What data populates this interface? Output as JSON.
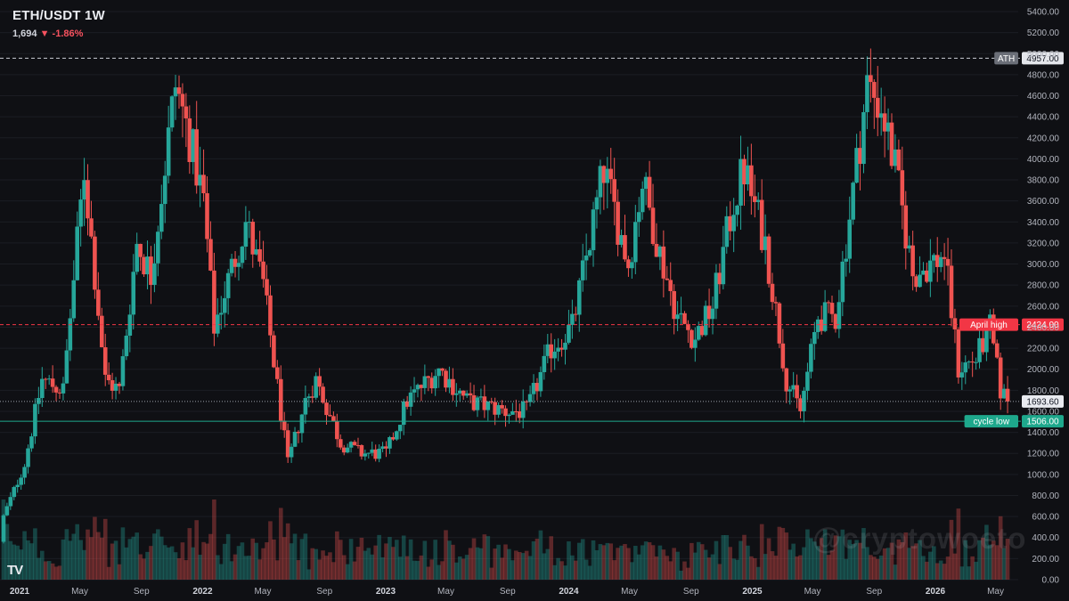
{
  "header": {
    "symbol": "ETH/USDT 1W",
    "last": "1,694",
    "arrow": "▼",
    "change": "-1.86%"
  },
  "logo": "TV",
  "watermark": "@cryptowoeto",
  "colors": {
    "up": "#26a69a",
    "down": "#ef5350",
    "background": "#0f1014",
    "ath_line": "#c9ccd3",
    "april_line": "#f23645",
    "cycle_line": "#1ea88c",
    "grid": "#1b1d23"
  },
  "chart_data": {
    "type": "candlestick",
    "title": "ETH/USDT 1W",
    "xlabel": "",
    "ylabel": "",
    "ylim": [
      0,
      5400
    ],
    "y_ticks": [
      "0.00",
      "200.00",
      "400.00",
      "600.00",
      "800.00",
      "1000.00",
      "1200.00",
      "1400.00",
      "1600.00",
      "1800.00",
      "2000.00",
      "2200.00",
      "2400.00",
      "2600.00",
      "2800.00",
      "3000.00",
      "3200.00",
      "3400.00",
      "3600.00",
      "3800.00",
      "4000.00",
      "4200.00",
      "4400.00",
      "4600.00",
      "4800.00",
      "5000.00",
      "5200.00",
      "5400.00"
    ],
    "x_ticks": [
      "2021",
      "May",
      "Sep",
      "2022",
      "May",
      "Sep",
      "2023",
      "May",
      "Sep",
      "2024",
      "May",
      "Sep",
      "2025",
      "May",
      "Sep",
      "2026",
      "May"
    ],
    "x_range": [
      "2020-11-23",
      "2026-06-01"
    ],
    "close_path": [
      [
        "2020-11-30",
        600
      ],
      [
        "2021-01-11",
        1100
      ],
      [
        "2021-02-15",
        1900
      ],
      [
        "2021-03-29",
        1800
      ],
      [
        "2021-05-10",
        3900
      ],
      [
        "2021-06-21",
        1900
      ],
      [
        "2021-07-19",
        1800
      ],
      [
        "2021-08-23",
        3200
      ],
      [
        "2021-09-20",
        2900
      ],
      [
        "2021-10-25",
        4200
      ],
      [
        "2021-11-08",
        4700
      ],
      [
        "2021-12-06",
        4200
      ],
      [
        "2022-01-03",
        3600
      ],
      [
        "2022-01-24",
        2400
      ],
      [
        "2022-03-28",
        3400
      ],
      [
        "2022-05-02",
        2800
      ],
      [
        "2022-06-20",
        1100
      ],
      [
        "2022-07-25",
        1700
      ],
      [
        "2022-08-15",
        1900
      ],
      [
        "2022-10-03",
        1300
      ],
      [
        "2022-11-14",
        1200
      ],
      [
        "2023-01-02",
        1200
      ],
      [
        "2023-02-13",
        1700
      ],
      [
        "2023-04-17",
        2000
      ],
      [
        "2023-06-12",
        1700
      ],
      [
        "2023-08-28",
        1600
      ],
      [
        "2023-10-09",
        1600
      ],
      [
        "2023-11-27",
        2200
      ],
      [
        "2024-01-08",
        2400
      ],
      [
        "2024-03-11",
        3900
      ],
      [
        "2024-04-29",
        3000
      ],
      [
        "2024-05-27",
        3800
      ],
      [
        "2024-07-01",
        3100
      ],
      [
        "2024-08-05",
        2500
      ],
      [
        "2024-09-09",
        2300
      ],
      [
        "2024-10-14",
        2600
      ],
      [
        "2024-11-25",
        3600
      ],
      [
        "2024-12-16",
        3900
      ],
      [
        "2025-01-27",
        3200
      ],
      [
        "2025-03-10",
        1900
      ],
      [
        "2025-04-07",
        1600
      ],
      [
        "2025-05-12",
        2500
      ],
      [
        "2025-06-16",
        2500
      ],
      [
        "2025-07-21",
        3700
      ],
      [
        "2025-08-18",
        4700
      ],
      [
        "2025-09-15",
        4500
      ],
      [
        "2025-10-13",
        3900
      ],
      [
        "2025-11-17",
        2900
      ],
      [
        "2025-12-22",
        3000
      ],
      [
        "2026-01-19",
        3100
      ],
      [
        "2026-02-16",
        2000
      ],
      [
        "2026-03-23",
        2100
      ],
      [
        "2026-04-20",
        2400
      ],
      [
        "2026-05-11",
        1800
      ],
      [
        "2026-05-25",
        1693.6
      ]
    ],
    "levels": [
      {
        "label": "ATH",
        "value": 4957.0,
        "value_text": "4957.00",
        "style": "dashed",
        "color": "#c9ccd3"
      },
      {
        "label": "April high",
        "value": 2424.0,
        "value_text": "2424.00",
        "style": "dashed",
        "color": "#f23645"
      },
      {
        "label": "",
        "value": 1693.6,
        "value_text": "1693.60",
        "style": "dotted",
        "color": "#9aa0ab"
      },
      {
        "label": "cycle low",
        "value": 1506.0,
        "value_text": "1506.00",
        "style": "solid",
        "color": "#1ea88c"
      }
    ],
    "last_price": 1693.6,
    "grid": false,
    "volume": true
  }
}
